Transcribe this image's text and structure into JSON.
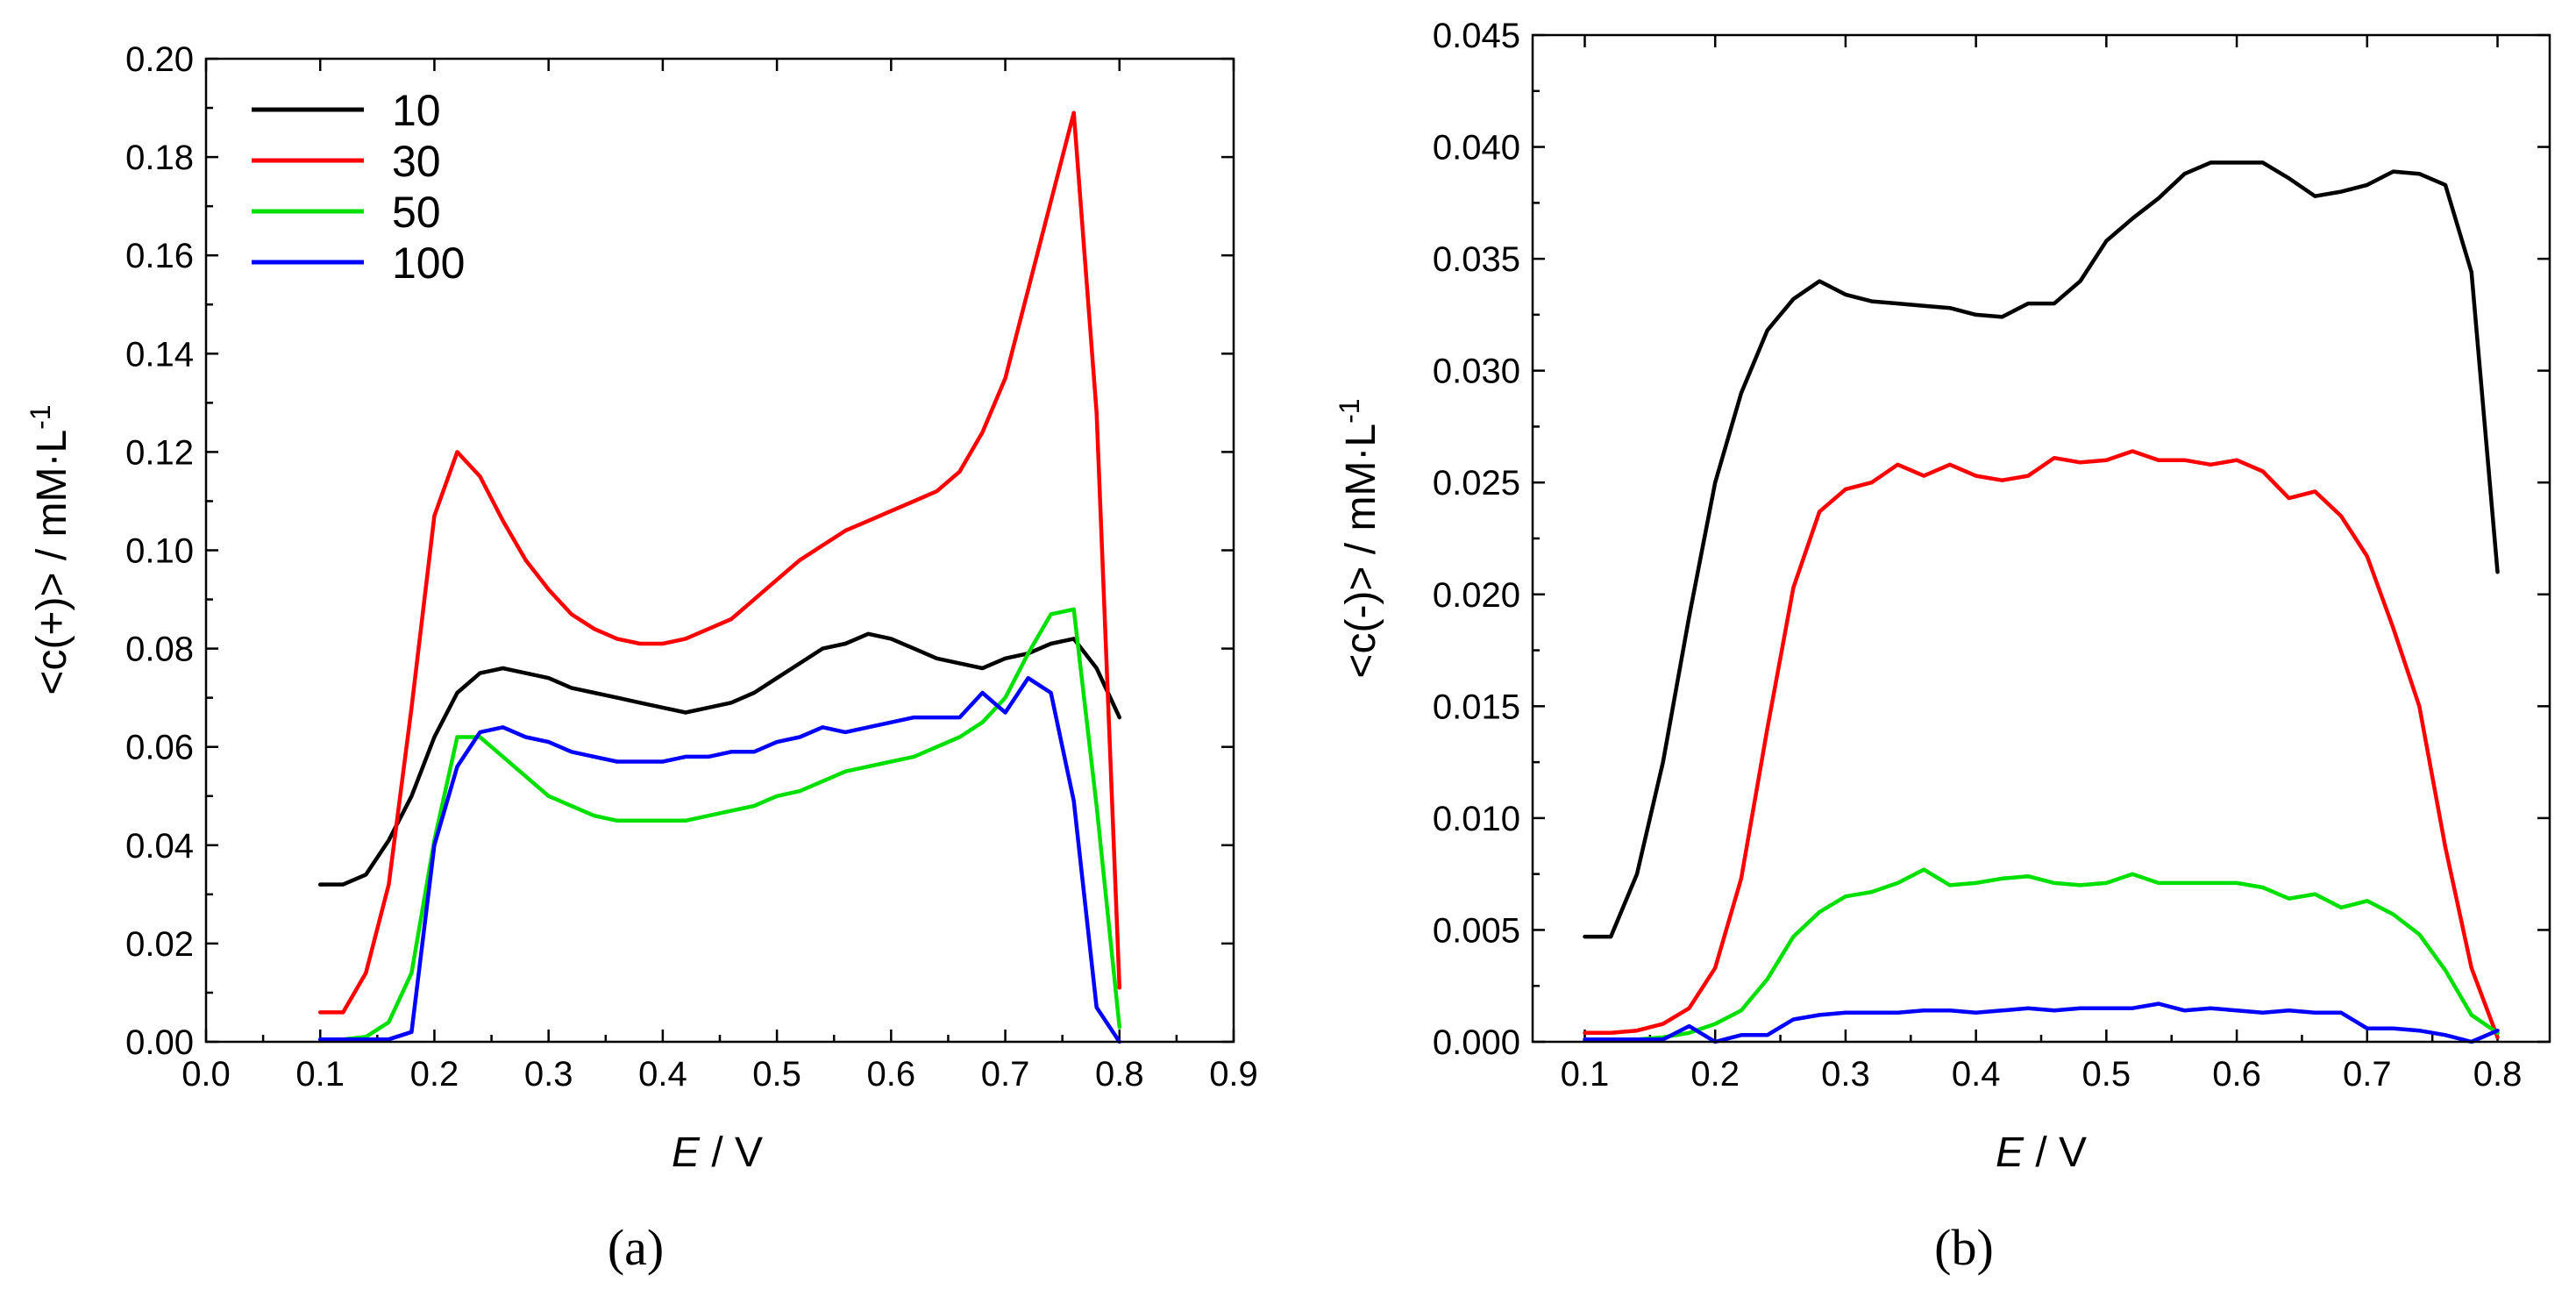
{
  "colors": {
    "10": "#000000",
    "30": "#ff0000",
    "50": "#00e000",
    "100": "#0000ff"
  },
  "chart_data": [
    {
      "type": "line",
      "panel_label": "(a)",
      "xlabel": "E",
      "xlabel_unit": " / V",
      "ylabel": "<c(+)> / mM·L",
      "ylabel_sup": "-1",
      "xlim": [
        0.0,
        0.9
      ],
      "ylim": [
        0.0,
        0.2
      ],
      "x_ticks": [
        "0.0",
        "0.1",
        "0.2",
        "0.3",
        "0.4",
        "0.5",
        "0.6",
        "0.7",
        "0.8",
        "0.9"
      ],
      "y_ticks": [
        "0.00",
        "0.02",
        "0.04",
        "0.06",
        "0.08",
        "0.10",
        "0.12",
        "0.14",
        "0.16",
        "0.18",
        "0.20"
      ],
      "legend": [
        "10",
        "30",
        "50",
        "100"
      ],
      "legend_position": "top-left",
      "series": [
        {
          "name": "10",
          "x": [
            0.1,
            0.12,
            0.14,
            0.16,
            0.18,
            0.2,
            0.22,
            0.24,
            0.26,
            0.28,
            0.3,
            0.32,
            0.34,
            0.36,
            0.38,
            0.4,
            0.42,
            0.44,
            0.46,
            0.48,
            0.5,
            0.52,
            0.54,
            0.56,
            0.58,
            0.6,
            0.62,
            0.64,
            0.66,
            0.68,
            0.7,
            0.72,
            0.74,
            0.76,
            0.78,
            0.8
          ],
          "y": [
            0.032,
            0.032,
            0.034,
            0.041,
            0.05,
            0.062,
            0.071,
            0.075,
            0.076,
            0.075,
            0.074,
            0.072,
            0.071,
            0.07,
            0.069,
            0.068,
            0.067,
            0.068,
            0.069,
            0.071,
            0.074,
            0.077,
            0.08,
            0.081,
            0.083,
            0.082,
            0.08,
            0.078,
            0.077,
            0.076,
            0.078,
            0.079,
            0.081,
            0.082,
            0.076,
            0.066
          ]
        },
        {
          "name": "30",
          "x": [
            0.1,
            0.12,
            0.14,
            0.16,
            0.18,
            0.2,
            0.22,
            0.24,
            0.26,
            0.28,
            0.3,
            0.32,
            0.34,
            0.36,
            0.38,
            0.4,
            0.42,
            0.44,
            0.46,
            0.48,
            0.5,
            0.52,
            0.54,
            0.56,
            0.58,
            0.6,
            0.62,
            0.64,
            0.66,
            0.68,
            0.7,
            0.72,
            0.74,
            0.76,
            0.78,
            0.8
          ],
          "y": [
            0.006,
            0.006,
            0.014,
            0.032,
            0.068,
            0.107,
            0.12,
            0.115,
            0.106,
            0.098,
            0.092,
            0.087,
            0.084,
            0.082,
            0.081,
            0.081,
            0.082,
            0.084,
            0.086,
            0.09,
            0.094,
            0.098,
            0.101,
            0.104,
            0.106,
            0.108,
            0.11,
            0.112,
            0.116,
            0.124,
            0.135,
            0.153,
            0.171,
            0.189,
            0.128,
            0.011
          ]
        },
        {
          "name": "50",
          "x": [
            0.1,
            0.12,
            0.14,
            0.16,
            0.18,
            0.2,
            0.22,
            0.24,
            0.26,
            0.28,
            0.3,
            0.32,
            0.34,
            0.36,
            0.38,
            0.4,
            0.42,
            0.44,
            0.46,
            0.48,
            0.5,
            0.52,
            0.54,
            0.56,
            0.58,
            0.6,
            0.62,
            0.64,
            0.66,
            0.68,
            0.7,
            0.72,
            0.74,
            0.76,
            0.78,
            0.8
          ],
          "y": [
            0.0005,
            0.0005,
            0.001,
            0.004,
            0.014,
            0.041,
            0.062,
            0.062,
            0.058,
            0.054,
            0.05,
            0.048,
            0.046,
            0.045,
            0.045,
            0.045,
            0.045,
            0.046,
            0.047,
            0.048,
            0.05,
            0.051,
            0.053,
            0.055,
            0.056,
            0.057,
            0.058,
            0.06,
            0.062,
            0.065,
            0.07,
            0.079,
            0.087,
            0.088,
            0.048,
            0.003
          ]
        },
        {
          "name": "100",
          "x": [
            0.1,
            0.12,
            0.14,
            0.16,
            0.18,
            0.2,
            0.22,
            0.24,
            0.26,
            0.28,
            0.3,
            0.32,
            0.34,
            0.36,
            0.38,
            0.4,
            0.42,
            0.44,
            0.46,
            0.48,
            0.5,
            0.52,
            0.54,
            0.56,
            0.58,
            0.6,
            0.62,
            0.64,
            0.66,
            0.68,
            0.69,
            0.7,
            0.72,
            0.74,
            0.76,
            0.78,
            0.8
          ],
          "y": [
            0.0005,
            0.0005,
            0.0005,
            0.0005,
            0.002,
            0.04,
            0.056,
            0.063,
            0.064,
            0.062,
            0.061,
            0.059,
            0.058,
            0.057,
            0.057,
            0.057,
            0.058,
            0.058,
            0.059,
            0.059,
            0.061,
            0.062,
            0.064,
            0.063,
            0.064,
            0.065,
            0.066,
            0.066,
            0.066,
            0.071,
            0.069,
            0.067,
            0.074,
            0.071,
            0.049,
            0.007,
            0.0
          ]
        }
      ]
    },
    {
      "type": "line",
      "panel_label": "(b)",
      "xlabel": "E",
      "xlabel_unit": " / V",
      "ylabel": "<c(-)> / mM·L",
      "ylabel_sup": "-1",
      "xlim": [
        0.06,
        0.84
      ],
      "ylim": [
        0.0,
        0.045
      ],
      "x_ticks": [
        "0.1",
        "0.2",
        "0.3",
        "0.4",
        "0.5",
        "0.6",
        "0.7",
        "0.8"
      ],
      "y_ticks": [
        "0.000",
        "0.005",
        "0.010",
        "0.015",
        "0.020",
        "0.025",
        "0.030",
        "0.035",
        "0.040",
        "0.045"
      ],
      "series": [
        {
          "name": "10",
          "x": [
            0.1,
            0.12,
            0.14,
            0.16,
            0.18,
            0.2,
            0.22,
            0.24,
            0.26,
            0.28,
            0.3,
            0.32,
            0.34,
            0.36,
            0.38,
            0.4,
            0.42,
            0.44,
            0.46,
            0.48,
            0.5,
            0.52,
            0.54,
            0.56,
            0.58,
            0.6,
            0.62,
            0.64,
            0.66,
            0.68,
            0.7,
            0.72,
            0.74,
            0.76,
            0.78,
            0.8
          ],
          "y": [
            0.0047,
            0.0047,
            0.0075,
            0.0125,
            0.019,
            0.025,
            0.029,
            0.0318,
            0.0332,
            0.034,
            0.0334,
            0.0331,
            0.033,
            0.0329,
            0.0328,
            0.0325,
            0.0324,
            0.033,
            0.033,
            0.034,
            0.0358,
            0.0368,
            0.0377,
            0.0388,
            0.0393,
            0.0393,
            0.0393,
            0.0386,
            0.0378,
            0.038,
            0.0383,
            0.0389,
            0.0388,
            0.0383,
            0.0344,
            0.021
          ]
        },
        {
          "name": "30",
          "x": [
            0.1,
            0.12,
            0.14,
            0.16,
            0.18,
            0.2,
            0.22,
            0.24,
            0.26,
            0.28,
            0.3,
            0.32,
            0.34,
            0.36,
            0.38,
            0.4,
            0.42,
            0.44,
            0.46,
            0.48,
            0.5,
            0.52,
            0.54,
            0.56,
            0.58,
            0.6,
            0.62,
            0.64,
            0.66,
            0.68,
            0.7,
            0.72,
            0.74,
            0.76,
            0.78,
            0.8
          ],
          "y": [
            0.0004,
            0.0004,
            0.0005,
            0.0008,
            0.0015,
            0.0033,
            0.0073,
            0.014,
            0.0203,
            0.0237,
            0.0247,
            0.025,
            0.0258,
            0.0253,
            0.0258,
            0.0253,
            0.0251,
            0.0253,
            0.0261,
            0.0259,
            0.026,
            0.0264,
            0.026,
            0.026,
            0.0258,
            0.026,
            0.0255,
            0.0243,
            0.0246,
            0.0235,
            0.0217,
            0.0185,
            0.015,
            0.0087,
            0.0033,
            0.0002
          ]
        },
        {
          "name": "50",
          "x": [
            0.1,
            0.12,
            0.14,
            0.16,
            0.18,
            0.2,
            0.22,
            0.24,
            0.26,
            0.28,
            0.3,
            0.32,
            0.34,
            0.36,
            0.38,
            0.4,
            0.42,
            0.44,
            0.46,
            0.48,
            0.5,
            0.52,
            0.54,
            0.56,
            0.58,
            0.6,
            0.62,
            0.64,
            0.66,
            0.68,
            0.7,
            0.72,
            0.74,
            0.76,
            0.78,
            0.8
          ],
          "y": [
            0.0001,
            0.0001,
            0.0001,
            0.0002,
            0.0004,
            0.0008,
            0.0014,
            0.0028,
            0.0047,
            0.0058,
            0.0065,
            0.0067,
            0.0071,
            0.0077,
            0.007,
            0.0071,
            0.0073,
            0.0074,
            0.0071,
            0.007,
            0.0071,
            0.0075,
            0.0071,
            0.0071,
            0.0071,
            0.0071,
            0.0069,
            0.0064,
            0.0066,
            0.006,
            0.0063,
            0.0057,
            0.0048,
            0.0032,
            0.0012,
            0.0004
          ]
        },
        {
          "name": "100",
          "x": [
            0.1,
            0.12,
            0.14,
            0.16,
            0.18,
            0.2,
            0.22,
            0.24,
            0.26,
            0.28,
            0.3,
            0.32,
            0.34,
            0.36,
            0.38,
            0.4,
            0.42,
            0.44,
            0.46,
            0.48,
            0.5,
            0.52,
            0.54,
            0.56,
            0.58,
            0.6,
            0.62,
            0.64,
            0.66,
            0.68,
            0.7,
            0.72,
            0.74,
            0.76,
            0.78,
            0.8
          ],
          "y": [
            0.0001,
            0.0001,
            0.0001,
            0.0001,
            0.0007,
            0.0,
            0.0003,
            0.0003,
            0.001,
            0.0012,
            0.0013,
            0.0013,
            0.0013,
            0.0014,
            0.0014,
            0.0013,
            0.0014,
            0.0015,
            0.0014,
            0.0015,
            0.0015,
            0.0015,
            0.0017,
            0.0014,
            0.0015,
            0.0014,
            0.0013,
            0.0014,
            0.0013,
            0.0013,
            0.0006,
            0.0006,
            0.0005,
            0.0003,
            0.0,
            0.0005
          ]
        }
      ]
    }
  ]
}
